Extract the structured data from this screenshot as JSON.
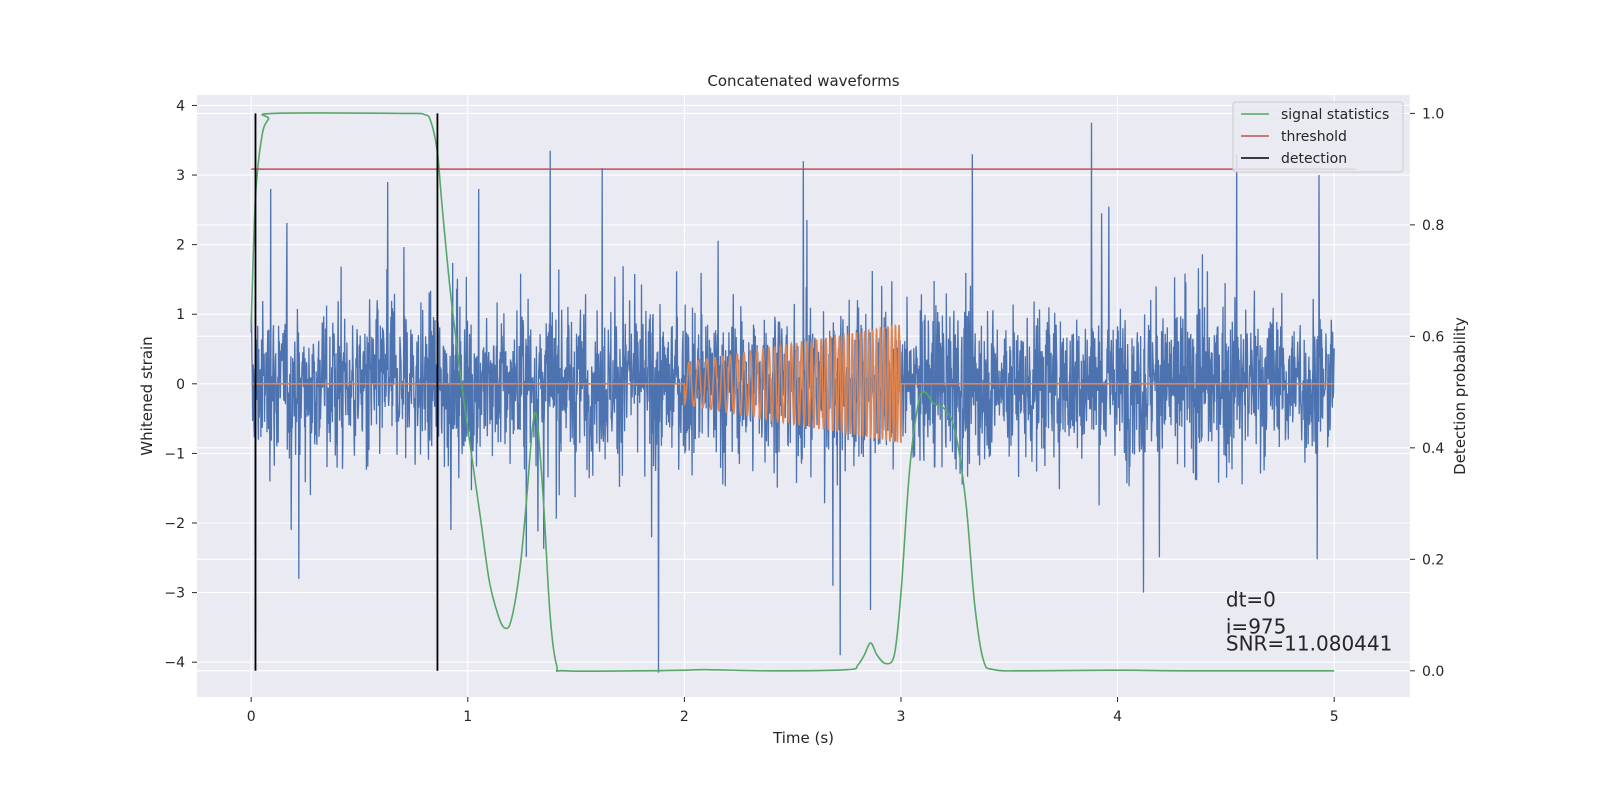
{
  "chart_data": {
    "type": "line",
    "title": "Concatenated waveforms",
    "xlabel": "Time (s)",
    "ylabel": "Whitened strain",
    "y2label": "Detection probability",
    "xlim": [
      -0.25,
      5.35
    ],
    "ylim": [
      -4.5,
      4.15
    ],
    "y2lim": [
      -0.047,
      1.033
    ],
    "xticks": [
      0,
      1,
      2,
      3,
      4,
      5
    ],
    "yticks": [
      -4,
      -3,
      -2,
      -1,
      0,
      1,
      2,
      3,
      4
    ],
    "y2ticks": [
      0.0,
      0.2,
      0.4,
      0.6,
      0.8,
      1.0
    ],
    "xtick_labels": [
      "0",
      "1",
      "2",
      "3",
      "4",
      "5"
    ],
    "ytick_labels": [
      "−4",
      "−3",
      "−2",
      "−1",
      "0",
      "1",
      "2",
      "3",
      "4"
    ],
    "y2tick_labels": [
      "0.0",
      "0.2",
      "0.4",
      "0.6",
      "0.8",
      "1.0"
    ],
    "grid": true,
    "legend_position": "top-right",
    "series": [
      {
        "name": "",
        "kind": "whitened-noise",
        "color": "#4c72b0",
        "axis": "left",
        "x_range": [
          0,
          5
        ],
        "typical_range": [
          -1.6,
          1.6
        ],
        "spikes": [
          {
            "x": 0.02,
            "y": -3.55
          },
          {
            "x": 0.09,
            "y": 2.8
          },
          {
            "x": 0.22,
            "y": -2.8
          },
          {
            "x": 0.63,
            "y": 2.9
          },
          {
            "x": 1.05,
            "y": 2.8
          },
          {
            "x": 1.38,
            "y": 3.35
          },
          {
            "x": 1.62,
            "y": 3.1
          },
          {
            "x": 1.88,
            "y": -4.15
          },
          {
            "x": 2.55,
            "y": 3.2
          },
          {
            "x": 2.72,
            "y": -3.9
          },
          {
            "x": 2.86,
            "y": -3.25
          },
          {
            "x": 3.33,
            "y": 3.3
          },
          {
            "x": 3.88,
            "y": 3.75
          },
          {
            "x": 4.12,
            "y": -3.0
          },
          {
            "x": 4.55,
            "y": 3.3
          },
          {
            "x": 4.93,
            "y": 3.0
          }
        ]
      },
      {
        "name": "",
        "kind": "injected-chirp",
        "color": "#dd8452",
        "axis": "left",
        "baseline": 0,
        "chirp_start": 2.0,
        "chirp_end": 3.0,
        "amplitude_start": 0.3,
        "amplitude_end": 0.85,
        "frequency_start": 22,
        "frequency_end": 60,
        "x_range": [
          0,
          5
        ]
      },
      {
        "name": "signal statistics",
        "color": "#55a868",
        "axis": "right",
        "points": [
          [
            0.0,
            0.62
          ],
          [
            0.02,
            0.85
          ],
          [
            0.05,
            0.96
          ],
          [
            0.08,
            0.99
          ],
          [
            0.1,
            1.0
          ],
          [
            0.7,
            1.0
          ],
          [
            0.8,
            0.998
          ],
          [
            0.83,
            0.985
          ],
          [
            0.86,
            0.93
          ],
          [
            0.88,
            0.84
          ],
          [
            0.92,
            0.68
          ],
          [
            0.97,
            0.52
          ],
          [
            1.02,
            0.38
          ],
          [
            1.06,
            0.27
          ],
          [
            1.1,
            0.16
          ],
          [
            1.14,
            0.1
          ],
          [
            1.17,
            0.077
          ],
          [
            1.2,
            0.09
          ],
          [
            1.24,
            0.18
          ],
          [
            1.27,
            0.3
          ],
          [
            1.3,
            0.44
          ],
          [
            1.32,
            0.45
          ],
          [
            1.35,
            0.3
          ],
          [
            1.38,
            0.1
          ],
          [
            1.41,
            0.01
          ],
          [
            1.45,
            0.0
          ],
          [
            1.8,
            0.0
          ],
          [
            2.0,
            0.001
          ],
          [
            2.1,
            0.002
          ],
          [
            2.4,
            0.0
          ],
          [
            2.75,
            0.002
          ],
          [
            2.8,
            0.01
          ],
          [
            2.83,
            0.028
          ],
          [
            2.86,
            0.05
          ],
          [
            2.89,
            0.028
          ],
          [
            2.93,
            0.013
          ],
          [
            2.97,
            0.03
          ],
          [
            3.0,
            0.14
          ],
          [
            3.04,
            0.36
          ],
          [
            3.08,
            0.48
          ],
          [
            3.11,
            0.5
          ],
          [
            3.15,
            0.48
          ],
          [
            3.2,
            0.47
          ],
          [
            3.25,
            0.43
          ],
          [
            3.3,
            0.3
          ],
          [
            3.34,
            0.12
          ],
          [
            3.38,
            0.02
          ],
          [
            3.43,
            0.002
          ],
          [
            3.6,
            0.0
          ],
          [
            4.0,
            0.001
          ],
          [
            4.3,
            0.0
          ],
          [
            5.0,
            0.0
          ]
        ]
      },
      {
        "name": "threshold",
        "color": "#c44e52",
        "axis": "right",
        "y": 0.9,
        "x_range": [
          0,
          5.1
        ]
      },
      {
        "name": "detection",
        "color": "#000000",
        "axis": "right",
        "x": [
          0.02,
          0.86
        ],
        "y_range": [
          0.0,
          1.0
        ]
      }
    ],
    "annotation": [
      "dt=0",
      "i=975",
      "SNR=11.080441"
    ],
    "annotation_anchor": {
      "x": 4.5,
      "y2": 0.11
    }
  }
}
